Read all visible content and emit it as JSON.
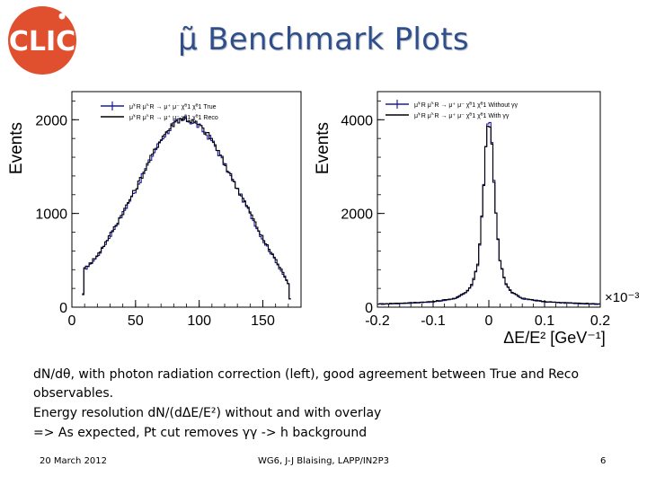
{
  "slide": {
    "title": "μ̃ Benchmark Plots",
    "logo_text": "CLIC",
    "caption_lines": [
      "dN/dθ, with photon radiation correction (left), good agreement between True and Reco",
      "observables.",
      "Energy resolution dN/(dΔE/E²) without and with overlay",
      "=> As expected, Pt cut removes γγ -> h background"
    ],
    "footer": {
      "date": "20 March 2012",
      "author": "WG6, J-J Blaising, LAPP/IN2P3",
      "page": "6"
    },
    "colors": {
      "title": "#2f4f8c",
      "logo": "#e0502e",
      "series_blue": "#1a1aa0",
      "series_black": "#000000"
    }
  },
  "chart_data": [
    {
      "type": "line",
      "subtype": "histogram",
      "ylabel": "Events",
      "xlabel": "",
      "xlim": [
        0,
        180
      ],
      "ylim": [
        0,
        2300
      ],
      "xticks": [
        0,
        50,
        100,
        150
      ],
      "yticks": [
        0,
        1000,
        2000
      ],
      "legend": {
        "position": "top-left",
        "entries": [
          "μ̃⁺R μ̃⁻R → μ⁺ μ⁻ χ̃⁰1 χ̃⁰1 True",
          "μ̃⁺R μ̃⁻R → μ⁺ μ⁻ χ̃⁰1 χ̃⁰1 Reco"
        ]
      },
      "series": [
        {
          "name": "True",
          "x": [
            8,
            10,
            20,
            30,
            40,
            50,
            60,
            70,
            80,
            85,
            90,
            95,
            100,
            110,
            120,
            130,
            140,
            150,
            160,
            170,
            172
          ],
          "values": [
            0,
            400,
            540,
            760,
            1000,
            1250,
            1530,
            1790,
            1950,
            2000,
            2000,
            1970,
            1930,
            1780,
            1520,
            1260,
            1000,
            720,
            500,
            250,
            0
          ]
        },
        {
          "name": "Reco",
          "x": [
            8,
            10,
            20,
            30,
            40,
            50,
            60,
            70,
            80,
            85,
            90,
            95,
            100,
            110,
            120,
            130,
            140,
            150,
            160,
            170,
            172
          ],
          "values": [
            0,
            410,
            550,
            770,
            1010,
            1260,
            1540,
            1800,
            1960,
            2010,
            2010,
            1980,
            1940,
            1790,
            1530,
            1270,
            1010,
            730,
            510,
            260,
            0
          ]
        }
      ]
    },
    {
      "type": "line",
      "subtype": "histogram",
      "ylabel": "Events",
      "xlabel": "ΔE/E² [GeV⁻¹]",
      "x_scale_label": "×10⁻³",
      "xlim": [
        -0.2,
        0.2
      ],
      "ylim": [
        0,
        4600
      ],
      "xticks": [
        -0.2,
        -0.1,
        0,
        0.1,
        0.2
      ],
      "xtick_labels": [
        "-0.2",
        "-0.1",
        "0",
        "0.1",
        "0.2"
      ],
      "yticks": [
        0,
        2000,
        4000
      ],
      "legend": {
        "position": "top-right",
        "entries": [
          "μ̃⁺R μ̃⁻R → μ⁺ μ⁻ χ̃⁰1 χ̃⁰1 Without γγ",
          "μ̃⁺R μ̃⁻R → μ⁺ μ⁻ χ̃⁰1 χ̃⁰1 With γγ"
        ]
      },
      "series": [
        {
          "name": "Without γγ",
          "x": [
            -0.2,
            -0.15,
            -0.1,
            -0.06,
            -0.04,
            -0.03,
            -0.02,
            -0.015,
            -0.01,
            -0.005,
            0,
            0.005,
            0.01,
            0.015,
            0.02,
            0.03,
            0.04,
            0.06,
            0.1,
            0.15,
            0.2
          ],
          "values": [
            60,
            80,
            110,
            180,
            320,
            480,
            900,
            1500,
            2400,
            3500,
            4100,
            3600,
            2500,
            1600,
            1000,
            500,
            320,
            180,
            110,
            80,
            60
          ]
        },
        {
          "name": "With γγ",
          "x": [
            -0.2,
            -0.15,
            -0.1,
            -0.06,
            -0.04,
            -0.03,
            -0.02,
            -0.015,
            -0.01,
            -0.005,
            0,
            0.005,
            0.01,
            0.015,
            0.02,
            0.03,
            0.04,
            0.06,
            0.1,
            0.15,
            0.2
          ],
          "values": [
            70,
            90,
            120,
            190,
            330,
            500,
            920,
            1520,
            2420,
            3520,
            4050,
            3580,
            2480,
            1600,
            1010,
            510,
            330,
            190,
            120,
            90,
            70
          ]
        }
      ]
    }
  ]
}
